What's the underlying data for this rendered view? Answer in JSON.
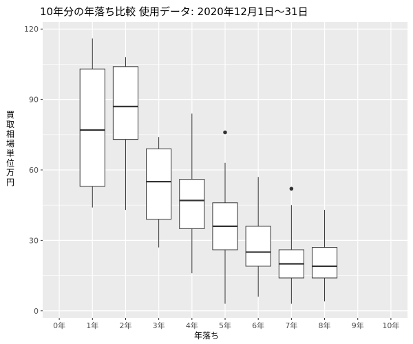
{
  "chart_data": {
    "type": "box",
    "title": "10年分の年落ち比較 使用データ: 2020年12月1日～31日",
    "xlabel": "年落ち",
    "ylabel": "買取相場 単位 万円",
    "ylim": [
      -3,
      123
    ],
    "yticks": [
      0,
      30,
      60,
      90,
      120
    ],
    "grid": true,
    "categories": [
      "0年",
      "1年",
      "2年",
      "3年",
      "4年",
      "5年",
      "6年",
      "7年",
      "8年",
      "9年",
      "10年"
    ],
    "boxes": [
      {
        "category": "1年",
        "whisker_low": 44,
        "q1": 53,
        "median": 77,
        "q3": 103,
        "whisker_high": 116,
        "outliers": []
      },
      {
        "category": "2年",
        "whisker_low": 43,
        "q1": 73,
        "median": 87,
        "q3": 104,
        "whisker_high": 108,
        "outliers": []
      },
      {
        "category": "3年",
        "whisker_low": 27,
        "q1": 39,
        "median": 55,
        "q3": 69,
        "whisker_high": 74,
        "outliers": []
      },
      {
        "category": "4年",
        "whisker_low": 16,
        "q1": 35,
        "median": 47,
        "q3": 56,
        "whisker_high": 84,
        "outliers": []
      },
      {
        "category": "5年",
        "whisker_low": 3,
        "q1": 26,
        "median": 36,
        "q3": 46,
        "whisker_high": 63,
        "outliers": [
          76
        ]
      },
      {
        "category": "6年",
        "whisker_low": 6,
        "q1": 19,
        "median": 25,
        "q3": 36,
        "whisker_high": 57,
        "outliers": []
      },
      {
        "category": "7年",
        "whisker_low": 3,
        "q1": 14,
        "median": 20,
        "q3": 26,
        "whisker_high": 45,
        "outliers": [
          52
        ]
      },
      {
        "category": "8年",
        "whisker_low": 4,
        "q1": 14,
        "median": 19,
        "q3": 27,
        "whisker_high": 43,
        "outliers": []
      }
    ]
  }
}
